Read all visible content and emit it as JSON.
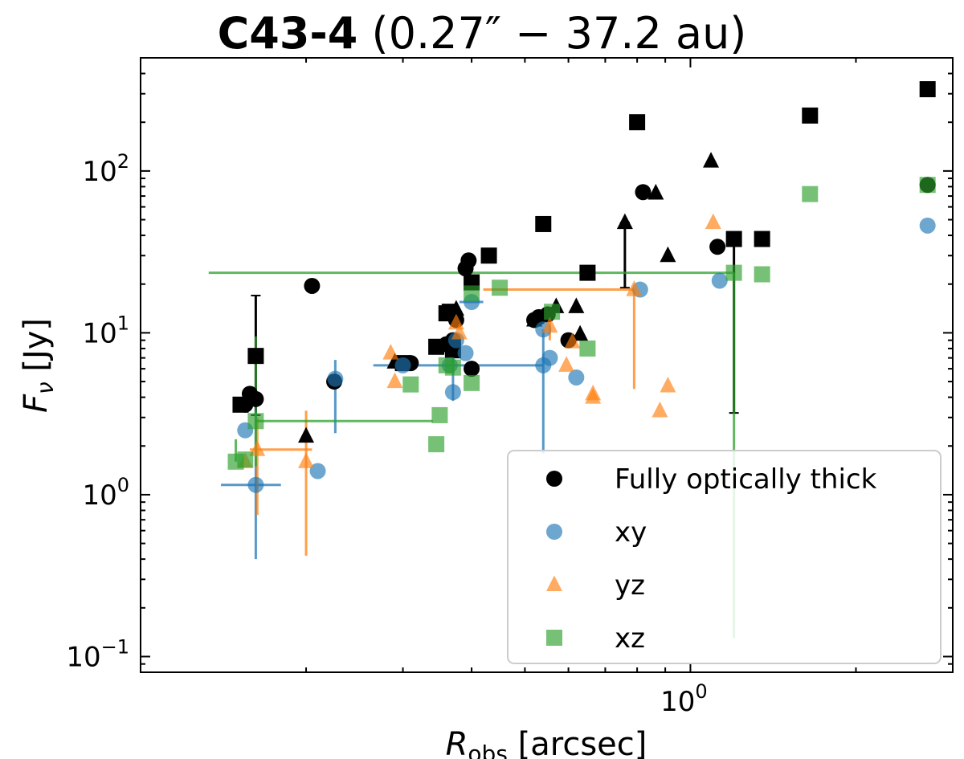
{
  "chart_data": {
    "type": "scatter",
    "title_bold": "C43-4",
    "title_rest": " (0.27″ − 37.2 au)",
    "xlabel_main": "R",
    "xlabel_sub": "obs",
    "xlabel_unit": " [arcsec]",
    "ylabel_main": "F",
    "ylabel_sub": "ν",
    "ylabel_unit": " [Jy]",
    "xscale": "log",
    "yscale": "log",
    "xlim": [
      0.1,
      3.0
    ],
    "ylim": [
      0.08,
      500
    ],
    "x_major_ticks": [
      {
        "value": 1.0,
        "base": "10",
        "exp": "0"
      }
    ],
    "y_major_ticks": [
      {
        "value": 0.1,
        "base": "10",
        "exp": "−1"
      },
      {
        "value": 1,
        "base": "10",
        "exp": "0"
      },
      {
        "value": 10,
        "base": "10",
        "exp": "1"
      },
      {
        "value": 100,
        "base": "10",
        "exp": "2"
      }
    ],
    "legend_position": "lower right",
    "series": [
      {
        "name": "Fully optically thick",
        "color": "#000000",
        "opacity": 1.0,
        "marker": "circle",
        "points": [
          [
            0.155,
            3.6
          ],
          [
            0.158,
            4.2
          ],
          [
            0.162,
            3.9
          ],
          [
            0.205,
            19.5
          ],
          [
            0.225,
            5.0
          ],
          [
            0.31,
            6.5
          ],
          [
            0.36,
            8.5
          ],
          [
            0.37,
            9.0
          ],
          [
            0.375,
            12.0
          ],
          [
            0.39,
            25.0
          ],
          [
            0.395,
            28.0
          ],
          [
            0.4,
            6.0
          ],
          [
            0.52,
            12.0
          ],
          [
            0.53,
            12.5
          ],
          [
            0.55,
            13.0
          ],
          [
            0.6,
            9.0
          ],
          [
            0.82,
            74.0
          ],
          [
            1.12,
            34.0
          ],
          [
            2.7,
            82.0
          ]
        ]
      },
      {
        "name": "Fully optically thick",
        "color": "#000000",
        "opacity": 1.0,
        "marker": "square",
        "points": [
          [
            0.152,
            3.6
          ],
          [
            0.162,
            7.2
          ],
          [
            0.3,
            6.5
          ],
          [
            0.345,
            8.2
          ],
          [
            0.36,
            13.2
          ],
          [
            0.365,
            13.5
          ],
          [
            0.37,
            7.8
          ],
          [
            0.4,
            20.5
          ],
          [
            0.43,
            30.0
          ],
          [
            0.54,
            47.0
          ],
          [
            0.65,
            23.5
          ],
          [
            0.8,
            200.0
          ],
          [
            1.2,
            38.0
          ],
          [
            1.35,
            38.0
          ],
          [
            1.65,
            220.0
          ],
          [
            2.7,
            320.0
          ]
        ],
        "errorbars": [
          {
            "x": 0.162,
            "y": 7.2,
            "ylo": 3.1,
            "yhi": 17.0,
            "xlo": 0.162,
            "xhi": 0.162
          },
          {
            "x": 1.2,
            "y": 38.0,
            "ylo": 3.2,
            "yhi": 38.0,
            "xlo": 1.2,
            "xhi": 1.2
          }
        ]
      },
      {
        "name": "Fully optically thick",
        "color": "#000000",
        "opacity": 1.0,
        "marker": "triangle",
        "points": [
          [
            0.2,
            2.3
          ],
          [
            0.29,
            6.6
          ],
          [
            0.375,
            14.0
          ],
          [
            0.52,
            12.0
          ],
          [
            0.57,
            14.5
          ],
          [
            0.62,
            14.5
          ],
          [
            0.63,
            9.8
          ],
          [
            0.76,
            48.0
          ],
          [
            0.865,
            73.0
          ],
          [
            0.91,
            30.0
          ],
          [
            1.09,
            115.0
          ]
        ],
        "errorbars": [
          {
            "x": 0.76,
            "y": 48.0,
            "ylo": 19.0,
            "yhi": 48.0,
            "xlo": 0.76,
            "xhi": 0.76
          }
        ]
      },
      {
        "name": "xy",
        "color": "#1f77b4",
        "opacity": 0.65,
        "marker": "circle",
        "points": [
          [
            0.155,
            2.5
          ],
          [
            0.162,
            1.15
          ],
          [
            0.21,
            1.4
          ],
          [
            0.226,
            5.2
          ],
          [
            0.3,
            6.3
          ],
          [
            0.365,
            6.3
          ],
          [
            0.37,
            4.3
          ],
          [
            0.375,
            9.0
          ],
          [
            0.39,
            7.5
          ],
          [
            0.4,
            15.5
          ],
          [
            0.54,
            10.5
          ],
          [
            0.54,
            6.3
          ],
          [
            0.555,
            7.0
          ],
          [
            0.62,
            5.3
          ],
          [
            0.81,
            18.5
          ],
          [
            1.13,
            21.0
          ],
          [
            2.7,
            46.0
          ]
        ],
        "errorbars": [
          {
            "x": 0.162,
            "y": 1.15,
            "ylo": 0.4,
            "yhi": 3.3,
            "xlo": 0.14,
            "xhi": 0.18
          },
          {
            "x": 0.226,
            "y": 5.2,
            "ylo": 2.4,
            "yhi": 6.8,
            "xlo": 0.226,
            "xhi": 0.226
          },
          {
            "x": 0.37,
            "y": 6.3,
            "ylo": 3.8,
            "yhi": 9.0,
            "xlo": 0.265,
            "xhi": 0.54
          },
          {
            "x": 0.54,
            "y": 6.3,
            "ylo": 1.8,
            "yhi": 10.5,
            "xlo": 0.54,
            "xhi": 0.54
          },
          {
            "x": 0.4,
            "y": 15.5,
            "ylo": 15.5,
            "yhi": 15.5,
            "xlo": 0.38,
            "xhi": 0.42
          }
        ]
      },
      {
        "name": "yz",
        "color": "#ff7f0e",
        "opacity": 0.65,
        "marker": "triangle",
        "points": [
          [
            0.155,
            1.6
          ],
          [
            0.163,
            1.9
          ],
          [
            0.2,
            1.6
          ],
          [
            0.285,
            7.5
          ],
          [
            0.29,
            5.0
          ],
          [
            0.375,
            11.5
          ],
          [
            0.38,
            10.0
          ],
          [
            0.555,
            11.0
          ],
          [
            0.595,
            6.3
          ],
          [
            0.61,
            8.8
          ],
          [
            0.665,
            4.0
          ],
          [
            0.665,
            4.2
          ],
          [
            0.79,
            18.5
          ],
          [
            0.88,
            3.3
          ],
          [
            0.91,
            4.7
          ],
          [
            1.1,
            48.0
          ]
        ],
        "errorbars": [
          {
            "x": 0.163,
            "y": 1.9,
            "ylo": 0.75,
            "yhi": 3.0,
            "xlo": 0.158,
            "xhi": 0.205
          },
          {
            "x": 0.2,
            "y": 1.6,
            "ylo": 0.42,
            "yhi": 3.3,
            "xlo": 0.2,
            "xhi": 0.2
          },
          {
            "x": 0.79,
            "y": 18.5,
            "ylo": 4.5,
            "yhi": 18.5,
            "xlo": 0.42,
            "xhi": 0.79
          },
          {
            "x": 0.555,
            "y": 11.0,
            "ylo": 9.0,
            "yhi": 12.5,
            "xlo": 0.555,
            "xhi": 0.555
          }
        ]
      },
      {
        "name": "xz",
        "color": "#2ca02c",
        "opacity": 0.65,
        "marker": "square",
        "points": [
          [
            0.149,
            1.6
          ],
          [
            0.155,
            1.65
          ],
          [
            0.162,
            2.85
          ],
          [
            0.31,
            4.8
          ],
          [
            0.345,
            2.05
          ],
          [
            0.35,
            3.1
          ],
          [
            0.36,
            6.3
          ],
          [
            0.37,
            6.1
          ],
          [
            0.4,
            4.9
          ],
          [
            0.4,
            17.5
          ],
          [
            0.45,
            19.0
          ],
          [
            0.56,
            13.5
          ],
          [
            0.65,
            8.0
          ],
          [
            1.2,
            23.5
          ],
          [
            1.35,
            23.0
          ],
          [
            1.65,
            72.0
          ],
          [
            2.7,
            82.0
          ]
        ],
        "errorbars": [
          {
            "x": 0.162,
            "y": 2.85,
            "ylo": 1.5,
            "yhi": 9.5,
            "xlo": 0.162,
            "xhi": 0.34
          },
          {
            "x": 1.2,
            "y": 23.5,
            "ylo": 0.13,
            "yhi": 23.5,
            "xlo": 0.133,
            "xhi": 1.2
          },
          {
            "x": 0.149,
            "y": 1.6,
            "ylo": 1.6,
            "yhi": 2.2,
            "xlo": 0.149,
            "xhi": 0.149
          }
        ]
      }
    ],
    "legend": [
      {
        "label": "Fully optically thick",
        "marker": "circle",
        "color": "#000000",
        "opacity": 1.0
      },
      {
        "label": "xy",
        "marker": "circle",
        "color": "#1f77b4",
        "opacity": 0.65
      },
      {
        "label": "yz",
        "marker": "triangle",
        "color": "#ff7f0e",
        "opacity": 0.65
      },
      {
        "label": "xz",
        "marker": "square",
        "color": "#2ca02c",
        "opacity": 0.65
      }
    ]
  }
}
